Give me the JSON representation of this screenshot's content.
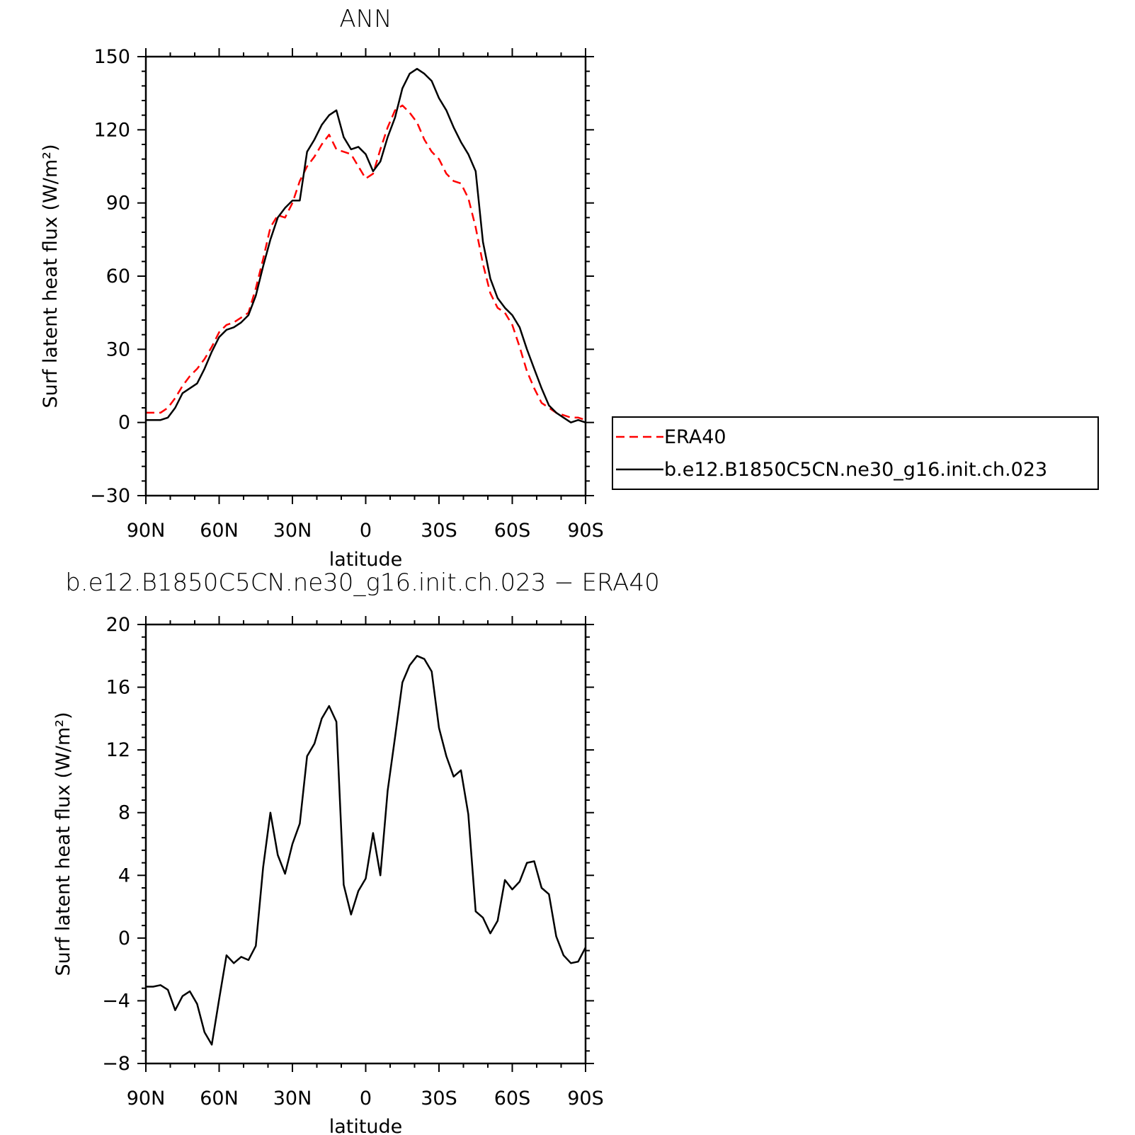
{
  "chart_data": [
    {
      "type": "line",
      "title": "ANN",
      "xlabel": "latitude",
      "ylabel": "Surf latent heat flux (W/m²)",
      "ylim": [
        -30,
        150
      ],
      "xlim": [
        90,
        -90
      ],
      "yticks": [
        -30,
        0,
        30,
        60,
        90,
        120,
        150
      ],
      "xtick_values": [
        90,
        60,
        30,
        0,
        -30,
        -60,
        -90
      ],
      "xtick_labels": [
        "90N",
        "60N",
        "30N",
        "0",
        "30S",
        "60S",
        "90S"
      ],
      "legend_position": "right",
      "series": [
        {
          "name": "ERA40",
          "color": "#ff0000",
          "style": "dashed",
          "x": [
            90,
            87,
            84,
            81,
            78,
            75,
            72,
            69,
            66,
            63,
            60,
            57,
            54,
            51,
            48,
            45,
            42,
            39,
            36,
            33,
            30,
            27,
            24,
            21,
            18,
            15,
            12,
            9,
            6,
            3,
            0,
            -3,
            -6,
            -9,
            -12,
            -15,
            -18,
            -21,
            -24,
            -27,
            -30,
            -33,
            -36,
            -39,
            -42,
            -45,
            -48,
            -51,
            -54,
            -57,
            -60,
            -63,
            -66,
            -69,
            -72,
            -75,
            -78,
            -81,
            -84,
            -87,
            -90
          ],
          "y": [
            4,
            4,
            4,
            6,
            10,
            15,
            19,
            22,
            26,
            31,
            37,
            40,
            41,
            43,
            45,
            55,
            67,
            80,
            85,
            84,
            90,
            99,
            105,
            109,
            114,
            118,
            112,
            111,
            110,
            105,
            100,
            102,
            112,
            121,
            128,
            130,
            127,
            123,
            116,
            111,
            108,
            102,
            99,
            98,
            92,
            80,
            65,
            53,
            47,
            45,
            40,
            31,
            21,
            14,
            8,
            6,
            4,
            3,
            2,
            2,
            1
          ]
        },
        {
          "name": "b.e12.B1850C5CN.ne30_g16.init.ch.023",
          "color": "#000000",
          "style": "solid",
          "x": [
            90,
            87,
            84,
            81,
            78,
            75,
            72,
            69,
            66,
            63,
            60,
            57,
            54,
            51,
            48,
            45,
            42,
            39,
            36,
            33,
            30,
            27,
            24,
            21,
            18,
            15,
            12,
            9,
            6,
            3,
            0,
            -3,
            -6,
            -9,
            -12,
            -15,
            -18,
            -21,
            -24,
            -27,
            -30,
            -33,
            -36,
            -39,
            -42,
            -45,
            -48,
            -51,
            -54,
            -57,
            -60,
            -63,
            -66,
            -69,
            -72,
            -75,
            -78,
            -81,
            -84,
            -87,
            -90
          ],
          "y": [
            1,
            1,
            1,
            2,
            6,
            12,
            14,
            16,
            22,
            29,
            35,
            38,
            39,
            41,
            44,
            52,
            64,
            75,
            84,
            88,
            91,
            91,
            111,
            116,
            122,
            126,
            128,
            117,
            112,
            113,
            110,
            103,
            107,
            117,
            125,
            137,
            143,
            145,
            143,
            140,
            133,
            128,
            121,
            115,
            110,
            103,
            74,
            59,
            51,
            47,
            44,
            39,
            30,
            22,
            14,
            7,
            4,
            2,
            0,
            1,
            0
          ]
        }
      ]
    },
    {
      "type": "line",
      "title": "b.e12.B1850C5CN.ne30_g16.init.ch.023 − ERA40",
      "xlabel": "latitude",
      "ylabel": "Surf latent heat flux (W/m²)",
      "ylim": [
        -8,
        20
      ],
      "xlim": [
        90,
        -90
      ],
      "yticks": [
        -8,
        -4,
        0,
        4,
        8,
        12,
        16,
        20
      ],
      "xtick_values": [
        90,
        60,
        30,
        0,
        -30,
        -60,
        -90
      ],
      "xtick_labels": [
        "90N",
        "60N",
        "30N",
        "0",
        "30S",
        "60S",
        "90S"
      ],
      "series": [
        {
          "color": "#000000",
          "style": "solid",
          "x": [
            90,
            87,
            84,
            81,
            78,
            75,
            72,
            69,
            66,
            63,
            60,
            57,
            54,
            51,
            48,
            45,
            42,
            39,
            36,
            33,
            30,
            27,
            24,
            21,
            18,
            15,
            12,
            9,
            6,
            3,
            0,
            -3,
            -6,
            -9,
            -12,
            -15,
            -18,
            -21,
            -24,
            -27,
            -30,
            -33,
            -36,
            -39,
            -42,
            -45,
            -48,
            -51,
            -54,
            -57,
            -60,
            -63,
            -66,
            -69,
            -72,
            -75,
            -78,
            -81,
            -84,
            -87,
            -90
          ],
          "y": [
            -3.1,
            -3.1,
            -3.0,
            -3.3,
            -4.6,
            -3.7,
            -3.4,
            -4.2,
            -6.0,
            -6.8,
            -3.9,
            -1.1,
            -1.6,
            -1.2,
            -1.4,
            -0.5,
            4.5,
            8.0,
            5.3,
            4.1,
            6.0,
            7.3,
            11.6,
            12.4,
            14.0,
            14.8,
            13.8,
            3.4,
            1.5,
            3.0,
            3.8,
            6.7,
            4.0,
            9.4,
            12.8,
            16.3,
            17.4,
            18.0,
            17.8,
            17.0,
            13.4,
            11.6,
            10.3,
            10.7,
            7.9,
            1.7,
            1.3,
            0.3,
            1.1,
            3.7,
            3.1,
            3.6,
            4.8,
            4.9,
            3.2,
            2.8,
            0.1,
            -1.1,
            -1.6,
            -1.5,
            -0.6
          ]
        }
      ]
    }
  ]
}
